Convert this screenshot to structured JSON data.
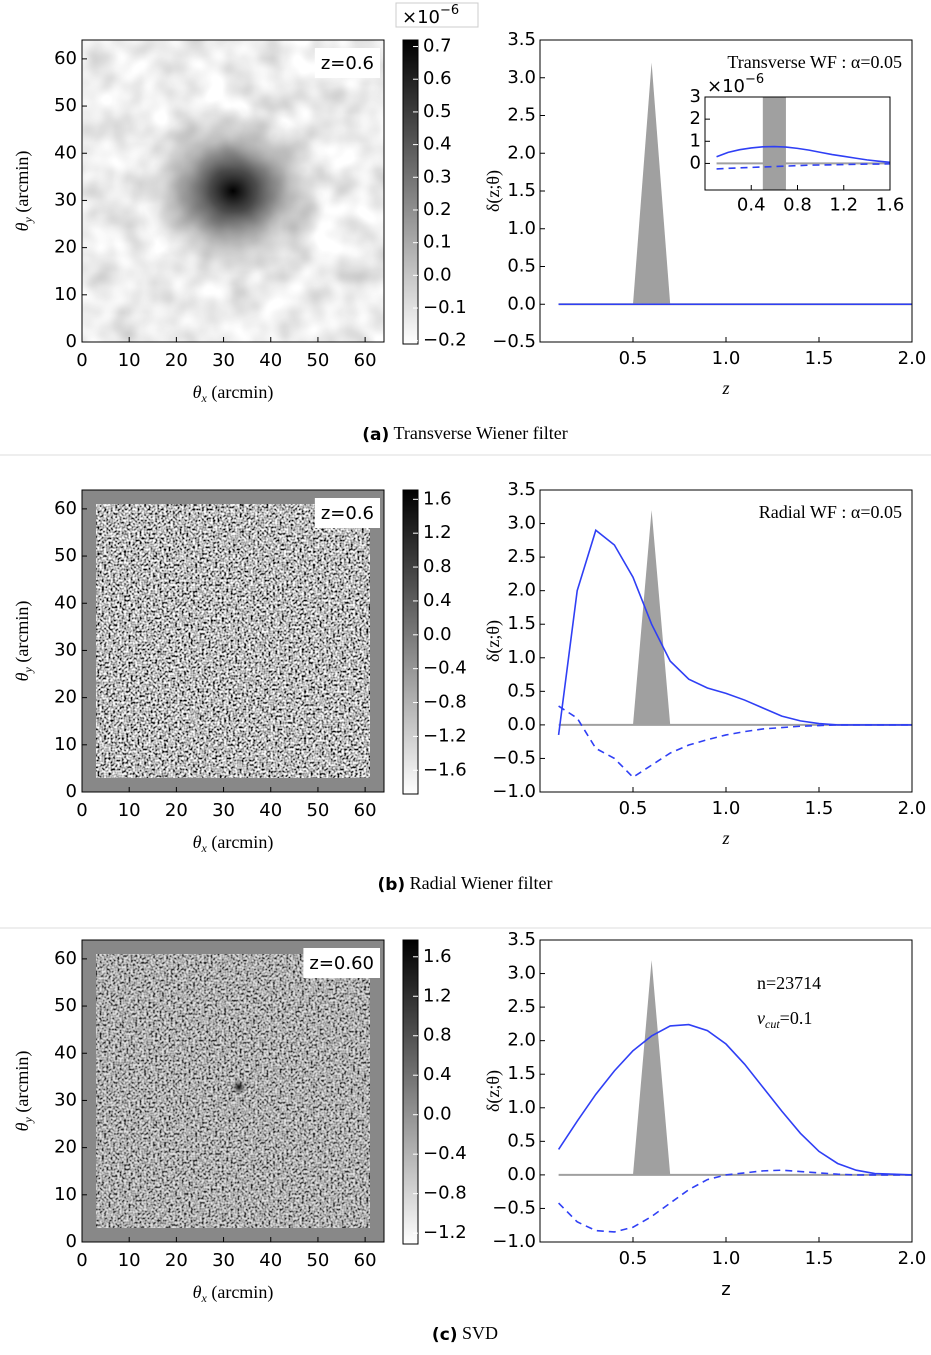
{
  "figure": {
    "panels": [
      {
        "map": {
          "annotation": "z=0.6",
          "xlabel": {
            "symbol": "θ",
            "sub": "x",
            "unit": " (arcmin)"
          },
          "ylabel": {
            "symbol": "θ",
            "sub": "y",
            "unit": " (arcmin)"
          },
          "xlim": [
            0,
            64
          ],
          "ylim": [
            0,
            64
          ],
          "xticks": [
            0,
            10,
            20,
            30,
            40,
            50,
            60
          ],
          "yticks": [
            0,
            10,
            20,
            30,
            40,
            50,
            60
          ]
        },
        "colorbar": {
          "exponent": {
            "base": "×10",
            "exp": "−6"
          },
          "lim": [
            -0.21,
            0.72
          ],
          "ticks": [
            0.7,
            0.6,
            0.5,
            0.4,
            0.3,
            0.2,
            0.1,
            {
              "value": 0,
              "label": "0.0"
            },
            {
              "value": -0.1,
              "label": "−0.1"
            },
            {
              "value": -0.2,
              "label": "−0.2"
            }
          ]
        },
        "plot": {
          "type": "line",
          "annotation": "Transverse WF : α=0.05",
          "xlabel": "z",
          "ylabel": "δ(z;θ)",
          "xlim": [
            0,
            2
          ],
          "ylim": [
            -0.5,
            3.5
          ],
          "xticks": [
            0.5,
            {
              "value": 1,
              "label": "1.0"
            },
            1.5,
            {
              "value": 2,
              "label": "2.0"
            }
          ],
          "yticks": [
            {
              "value": -0.5,
              "label": "−0.5"
            },
            {
              "value": 0,
              "label": "0.0"
            },
            0.5,
            {
              "value": 1,
              "label": "1.0"
            },
            1.5,
            {
              "value": 2,
              "label": "2.0"
            },
            2.5,
            {
              "value": 3,
              "label": "3.0"
            },
            3.5
          ],
          "shade": {
            "x": [
              0.5,
              0.6,
              0.7
            ],
            "values": [
              0,
              3.2,
              0
            ]
          },
          "baseline": 0,
          "x": [
            0.1,
            0.5,
            1.0,
            1.5,
            2.0
          ],
          "series": [
            {
              "style": "solid",
              "color": "#2f3ff5",
              "values": [
                0,
                0,
                0,
                0,
                0
              ]
            },
            {
              "style": "dashed",
              "color": "#2f3ff5",
              "values": [
                0,
                0,
                0,
                0,
                0
              ]
            }
          ],
          "inset": {
            "exponent": {
              "base": "×10",
              "exp": "−6"
            },
            "xlim": [
              0,
              1.6
            ],
            "ylim": [
              -1.2,
              3
            ],
            "xticks": [
              0.4,
              0.8,
              1.2,
              1.6
            ],
            "yticks": [
              0,
              1,
              2,
              3
            ],
            "band": [
              0.5,
              0.7
            ],
            "baseline": 0,
            "x": [
              0.1,
              0.2,
              0.3,
              0.4,
              0.5,
              0.6,
              0.7,
              0.8,
              0.9,
              1.0,
              1.1,
              1.2,
              1.3,
              1.4,
              1.5,
              1.6
            ],
            "series": [
              {
                "style": "solid",
                "color": "#2f3ff5",
                "values": [
                  0.3,
                  0.5,
                  0.62,
                  0.7,
                  0.75,
                  0.76,
                  0.74,
                  0.68,
                  0.6,
                  0.5,
                  0.4,
                  0.32,
                  0.24,
                  0.16,
                  0.1,
                  0.05
                ]
              },
              {
                "style": "dashed",
                "color": "#2f3ff5",
                "values": [
                  -0.25,
                  -0.22,
                  -0.2,
                  -0.18,
                  -0.16,
                  -0.14,
                  -0.12,
                  -0.1,
                  -0.08,
                  -0.07,
                  -0.06,
                  -0.05,
                  -0.04,
                  -0.03,
                  -0.03,
                  -0.02
                ]
              }
            ]
          }
        },
        "caption": {
          "label": "(a)",
          "text": " Transverse Wiener filter"
        }
      },
      {
        "map": {
          "annotation": "z=0.6",
          "xlabel": {
            "symbol": "θ",
            "sub": "x",
            "unit": " (arcmin)"
          },
          "ylabel": {
            "symbol": "θ",
            "sub": "y",
            "unit": " (arcmin)"
          },
          "xlim": [
            0,
            64
          ],
          "ylim": [
            0,
            64
          ],
          "xticks": [
            0,
            10,
            20,
            30,
            40,
            50,
            60
          ],
          "yticks": [
            0,
            10,
            20,
            30,
            40,
            50,
            60
          ]
        },
        "colorbar": {
          "lim": [
            -1.88,
            1.71
          ],
          "ticks": [
            1.6,
            1.2,
            0.8,
            0.4,
            {
              "value": 0,
              "label": "0.0"
            },
            {
              "value": -0.4,
              "label": "−0.4"
            },
            {
              "value": -0.8,
              "label": "−0.8"
            },
            {
              "value": -1.2,
              "label": "−1.2"
            },
            {
              "value": -1.6,
              "label": "−1.6"
            }
          ]
        },
        "plot": {
          "type": "line",
          "annotation": "Radial WF : α=0.05",
          "xlabel": "z",
          "ylabel": "δ(z;θ)",
          "xlim": [
            0,
            2
          ],
          "ylim": [
            -1,
            3.5
          ],
          "xticks": [
            0.5,
            {
              "value": 1,
              "label": "1.0"
            },
            1.5,
            {
              "value": 2,
              "label": "2.0"
            }
          ],
          "yticks": [
            {
              "value": -1,
              "label": "−1.0"
            },
            {
              "value": -0.5,
              "label": "−0.5"
            },
            {
              "value": 0,
              "label": "0.0"
            },
            0.5,
            {
              "value": 1,
              "label": "1.0"
            },
            1.5,
            {
              "value": 2,
              "label": "2.0"
            },
            2.5,
            {
              "value": 3,
              "label": "3.0"
            },
            3.5
          ],
          "shade": {
            "x": [
              0.5,
              0.6,
              0.7
            ],
            "values": [
              0,
              3.2,
              0
            ]
          },
          "baseline": 0,
          "x": [
            0.1,
            0.2,
            0.3,
            0.4,
            0.5,
            0.6,
            0.7,
            0.8,
            0.9,
            1.0,
            1.1,
            1.2,
            1.3,
            1.4,
            1.5,
            1.6,
            1.7,
            1.8,
            1.9,
            2.0
          ],
          "series": [
            {
              "style": "solid",
              "color": "#2f3ff5",
              "values": [
                -0.15,
                2.0,
                2.9,
                2.68,
                2.2,
                1.5,
                0.95,
                0.68,
                0.55,
                0.47,
                0.37,
                0.25,
                0.13,
                0.06,
                0.02,
                0,
                0,
                0,
                0,
                0
              ]
            },
            {
              "style": "dashed",
              "color": "#2f3ff5",
              "values": [
                0.28,
                0.1,
                -0.35,
                -0.5,
                -0.78,
                -0.6,
                -0.42,
                -0.3,
                -0.22,
                -0.15,
                -0.1,
                -0.06,
                -0.04,
                -0.02,
                -0.01,
                0,
                0,
                0,
                0,
                0
              ]
            }
          ]
        },
        "caption": {
          "label": "(b)",
          "text": " Radial Wiener filter"
        }
      },
      {
        "map": {
          "annotation": "z=0.60",
          "xlabel": {
            "symbol": "θ",
            "sub": "x",
            "unit": " (arcmin)"
          },
          "ylabel": {
            "symbol": "θ",
            "sub": "y",
            "unit": " (arcmin)"
          },
          "xlim": [
            0,
            64
          ],
          "ylim": [
            0,
            64
          ],
          "xticks": [
            0,
            10,
            20,
            30,
            40,
            50,
            60
          ],
          "yticks": [
            0,
            10,
            20,
            30,
            40,
            50,
            60
          ]
        },
        "colorbar": {
          "lim": [
            -1.31,
            1.77
          ],
          "ticks": [
            1.6,
            1.2,
            0.8,
            0.4,
            {
              "value": 0,
              "label": "0.0"
            },
            {
              "value": -0.4,
              "label": "−0.4"
            },
            {
              "value": -0.8,
              "label": "−0.8"
            },
            {
              "value": -1.2,
              "label": "−1.2"
            }
          ]
        },
        "plot": {
          "type": "line",
          "annotation": "n=23714",
          "annotation2": {
            "symbol": "v",
            "sub": "cut",
            "rest": "=0.1"
          },
          "xlabel": "z",
          "ylabel": "δ(z;θ)",
          "xlim": [
            0,
            2
          ],
          "ylim": [
            -1,
            3.5
          ],
          "xticks": [
            0.5,
            {
              "value": 1,
              "label": "1.0"
            },
            1.5,
            {
              "value": 2,
              "label": "2.0"
            }
          ],
          "yticks": [
            {
              "value": -1,
              "label": "−1.0"
            },
            {
              "value": -0.5,
              "label": "−0.5"
            },
            {
              "value": 0,
              "label": "0.0"
            },
            0.5,
            {
              "value": 1,
              "label": "1.0"
            },
            1.5,
            {
              "value": 2,
              "label": "2.0"
            },
            2.5,
            {
              "value": 3,
              "label": "3.0"
            },
            3.5
          ],
          "shade": {
            "x": [
              0.5,
              0.6,
              0.7
            ],
            "values": [
              0,
              3.2,
              0
            ]
          },
          "baseline": 0,
          "x": [
            0.1,
            0.2,
            0.3,
            0.4,
            0.5,
            0.6,
            0.7,
            0.8,
            0.9,
            1.0,
            1.1,
            1.2,
            1.3,
            1.4,
            1.5,
            1.6,
            1.7,
            1.8,
            1.9,
            2.0
          ],
          "series": [
            {
              "style": "solid",
              "color": "#2f3ff5",
              "values": [
                0.38,
                0.8,
                1.2,
                1.55,
                1.85,
                2.07,
                2.22,
                2.24,
                2.15,
                1.95,
                1.65,
                1.3,
                0.95,
                0.62,
                0.35,
                0.17,
                0.07,
                0.02,
                0.01,
                0
              ]
            },
            {
              "style": "dashed",
              "color": "#2f3ff5",
              "values": [
                -0.42,
                -0.7,
                -0.83,
                -0.85,
                -0.78,
                -0.62,
                -0.42,
                -0.22,
                -0.07,
                0,
                0.03,
                0.06,
                0.07,
                0.05,
                0.03,
                0.01,
                0,
                0,
                0,
                0
              ]
            }
          ]
        },
        "caption": {
          "label": "(c)",
          "text": " SVD"
        }
      }
    ]
  }
}
